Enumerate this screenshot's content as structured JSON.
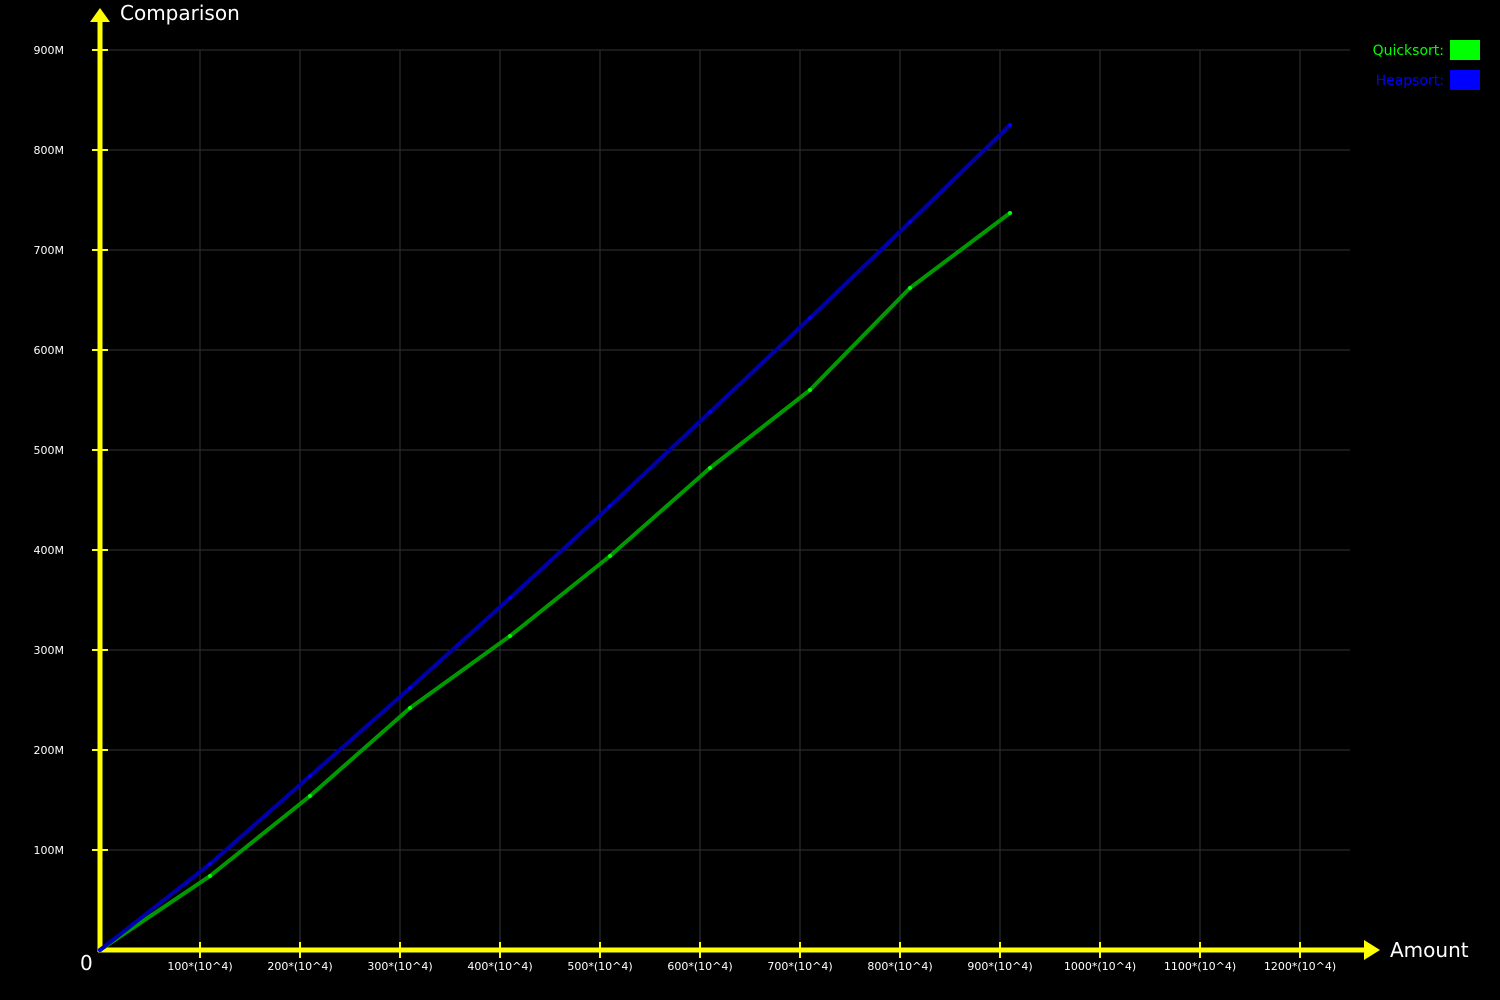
{
  "chart_data": {
    "type": "line",
    "title": "",
    "xlabel": "Amount",
    "ylabel": "Comparison",
    "origin_label": "0",
    "xlim": [
      0,
      1250
    ],
    "ylim": [
      0,
      950
    ],
    "x_ticks": [
      100,
      200,
      300,
      400,
      500,
      600,
      700,
      800,
      900,
      1000,
      1100,
      1200
    ],
    "x_tick_labels": [
      "100*(10^4)",
      "200*(10^4)",
      "300*(10^4)",
      "400*(10^4)",
      "500*(10^4)",
      "600*(10^4)",
      "700*(10^4)",
      "800*(10^4)",
      "900*(10^4)",
      "1000*(10^4)",
      "1100*(10^4)",
      "1200*(10^4)"
    ],
    "y_ticks": [
      100,
      200,
      300,
      400,
      500,
      600,
      700,
      800,
      900
    ],
    "y_tick_labels": [
      "100M",
      "200M",
      "300M",
      "400M",
      "500M",
      "600M",
      "700M",
      "800M",
      "900M"
    ],
    "grid": true,
    "legend_position": "top-right",
    "series": [
      {
        "name": "Quicksort:",
        "color": "#00ff00",
        "line_color": "#009900",
        "x": [
          0,
          110,
          210,
          310,
          410,
          510,
          610,
          710,
          810,
          910
        ],
        "y": [
          0,
          74,
          154,
          242,
          314,
          394,
          482,
          560,
          662,
          737
        ]
      },
      {
        "name": "Heapsort:",
        "color": "#0000ff",
        "line_color": "#0000aa",
        "x": [
          0,
          110,
          210,
          310,
          410,
          510,
          610,
          710,
          810,
          910
        ],
        "y": [
          0,
          86,
          174,
          262,
          352,
          444,
          538,
          632,
          728,
          825
        ]
      }
    ],
    "axis_color": "#ffff00",
    "grid_color": "#333333"
  }
}
